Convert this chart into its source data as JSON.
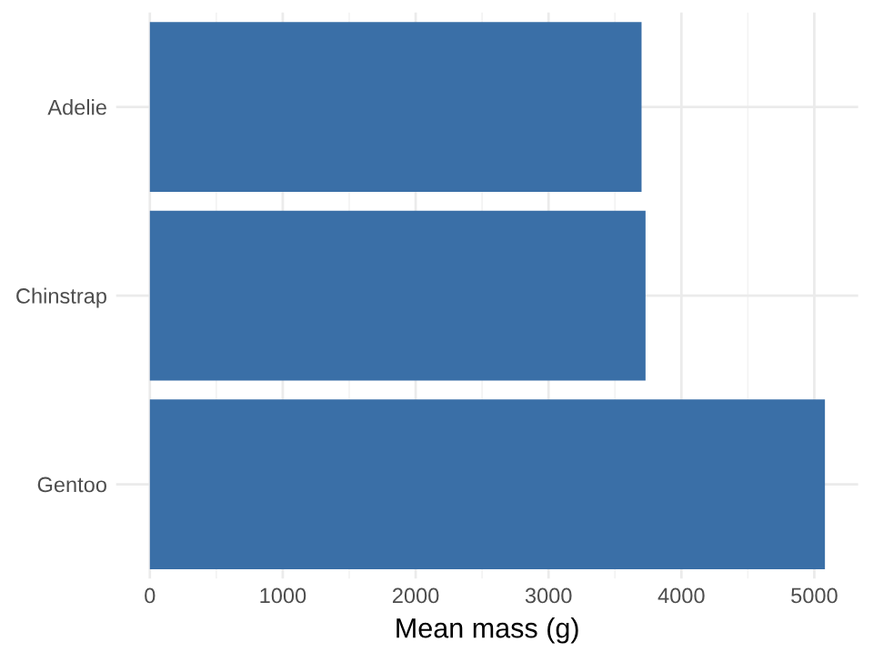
{
  "chart_data": {
    "type": "bar",
    "orientation": "horizontal",
    "xlabel": "Mean mass (g)",
    "categories": [
      "Adelie",
      "Chinstrap",
      "Gentoo"
    ],
    "values": [
      3700,
      3730,
      5080
    ],
    "color": "#3a6fa7",
    "xlim": [
      -254,
      5330
    ],
    "xticks": [
      0,
      1000,
      2000,
      3000,
      4000,
      5000
    ],
    "grid": true
  }
}
